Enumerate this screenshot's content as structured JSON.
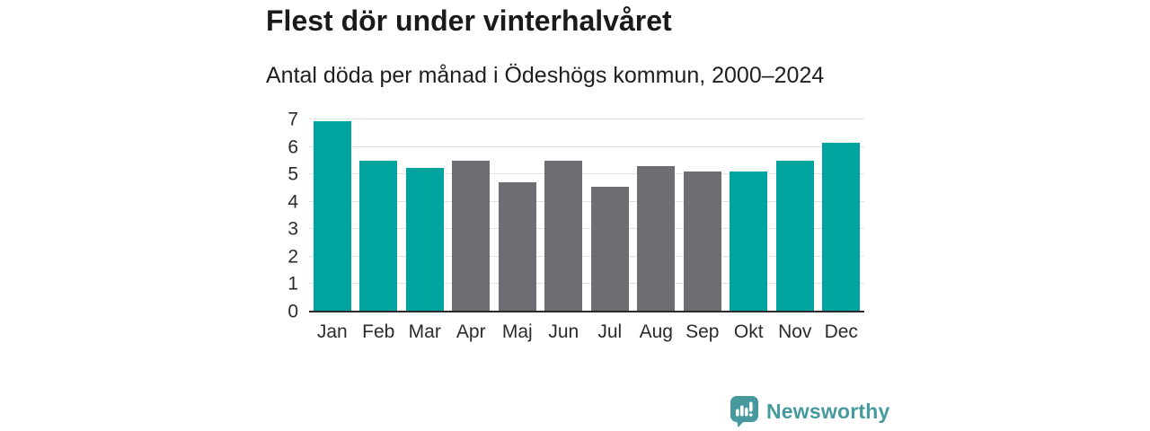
{
  "chart": {
    "title": "Flest dör under vinterhalvåret",
    "subtitle": "Antal döda per månad i Ödeshögs kommun, 2000–2024"
  },
  "chart_data": {
    "type": "bar",
    "title": "Flest dör under vinterhalvåret",
    "subtitle": "Antal döda per månad i Ödeshögs kommun, 2000–2024",
    "categories": [
      "Jan",
      "Feb",
      "Mar",
      "Apr",
      "Maj",
      "Jun",
      "Jul",
      "Aug",
      "Sep",
      "Okt",
      "Nov",
      "Dec"
    ],
    "values": [
      6.95,
      5.5,
      5.25,
      5.5,
      4.7,
      5.5,
      4.55,
      5.3,
      5.1,
      5.1,
      5.5,
      6.15
    ],
    "bar_colors": [
      "#00a49e",
      "#00a49e",
      "#00a49e",
      "#6e6d72",
      "#6e6d72",
      "#6e6d72",
      "#6e6d72",
      "#6e6d72",
      "#6e6d72",
      "#00a49e",
      "#00a49e",
      "#00a49e"
    ],
    "highlight_color": "#00a49e",
    "default_color": "#6e6d72",
    "highlighted_months": [
      "Jan",
      "Feb",
      "Mar",
      "Okt",
      "Nov",
      "Dec"
    ],
    "xlabel": "",
    "ylabel": "",
    "ylim": [
      0,
      7
    ],
    "yticks": [
      0,
      1,
      2,
      3,
      4,
      5,
      6,
      7
    ],
    "grid": true,
    "legend_position": "none"
  },
  "brand": {
    "name": "Newsworthy",
    "icon": "newsworthy-logo-icon",
    "color": "#469a9d"
  },
  "colors": {
    "title_text": "#1a1a1a",
    "axis_text": "#2b2b2b",
    "gridline": "#e2e2e2",
    "baseline": "#2b2b2b",
    "background": "#ffffff"
  }
}
